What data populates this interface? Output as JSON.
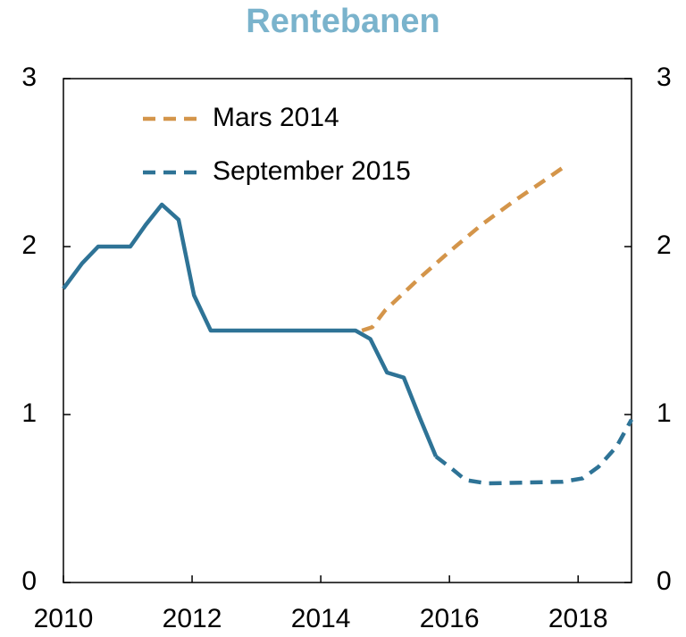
{
  "chart_data": {
    "type": "line",
    "title": "Rentebanen",
    "xlim": [
      2010,
      2018.83
    ],
    "xticks": [
      2010,
      2012,
      2014,
      2016,
      2018
    ],
    "ylim": [
      0,
      3
    ],
    "yticks": [
      0,
      1,
      2,
      3
    ],
    "y2lim": [
      0,
      3
    ],
    "y2ticks": [
      0,
      1,
      2,
      3
    ],
    "legend": "upper left",
    "series": [
      {
        "name": "Mars 2014",
        "color": "#d4954a",
        "dashed": true,
        "x": [
          2014.64,
          2014.8,
          2015.0,
          2015.5,
          2016.0,
          2016.5,
          2017.0,
          2017.5,
          2017.8
        ],
        "values": [
          1.5,
          1.52,
          1.62,
          1.8,
          1.97,
          2.13,
          2.27,
          2.4,
          2.48
        ]
      },
      {
        "name": "September 2015",
        "color": "#2e7396",
        "dashed_from": 2015.79,
        "x": [
          2010.0,
          2010.29,
          2010.54,
          2011.04,
          2011.28,
          2011.53,
          2011.79,
          2012.03,
          2012.29,
          2014.54,
          2014.77,
          2015.03,
          2015.29,
          2015.54,
          2015.79,
          2016.03,
          2016.25,
          2016.58,
          2017.76,
          2018.07,
          2018.32,
          2018.6,
          2018.83
        ],
        "values": [
          1.75,
          1.9,
          2.0,
          2.0,
          2.13,
          2.25,
          2.16,
          1.71,
          1.5,
          1.5,
          1.45,
          1.25,
          1.22,
          0.98,
          0.75,
          0.68,
          0.61,
          0.59,
          0.6,
          0.62,
          0.69,
          0.81,
          0.97
        ]
      }
    ]
  }
}
